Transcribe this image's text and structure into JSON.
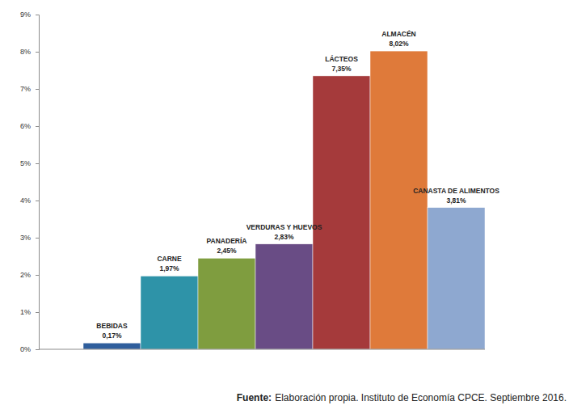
{
  "chart_data": {
    "type": "bar",
    "categories": [
      "BEBIDAS",
      "CARNE",
      "PANADERÍA",
      "VERDURAS Y HUEVOS",
      "LÁCTEOS",
      "ALMACÉN",
      "CANASTA DE ALIMENTOS"
    ],
    "values": [
      0.17,
      1.97,
      2.45,
      2.83,
      7.35,
      8.02,
      3.81
    ],
    "value_labels": [
      "0,17%",
      "1,97%",
      "2,45%",
      "2,83%",
      "7,35%",
      "8,02%",
      "3,81%"
    ],
    "colors": [
      "#2f5e9c",
      "#2e93a8",
      "#7f9d3f",
      "#694c85",
      "#a53a3b",
      "#df7a3a",
      "#8ea8d0"
    ],
    "ylim": [
      0,
      9
    ],
    "yticks": [
      {
        "value": 0,
        "label": "0%"
      },
      {
        "value": 1,
        "label": "1%"
      },
      {
        "value": 2,
        "label": "2%"
      },
      {
        "value": 3,
        "label": "3%"
      },
      {
        "value": 4,
        "label": "4%"
      },
      {
        "value": 5,
        "label": "5%"
      },
      {
        "value": 6,
        "label": "6%"
      },
      {
        "value": 7,
        "label": "7%"
      },
      {
        "value": 8,
        "label": "8%"
      },
      {
        "value": 9,
        "label": "9%"
      }
    ],
    "grid": false,
    "data_labels": true,
    "tick_labels": "y",
    "annotations": [
      "Fuente:",
      "Elaboración propia. Instituto de Economía CPCE. Septiembre 2016."
    ]
  }
}
